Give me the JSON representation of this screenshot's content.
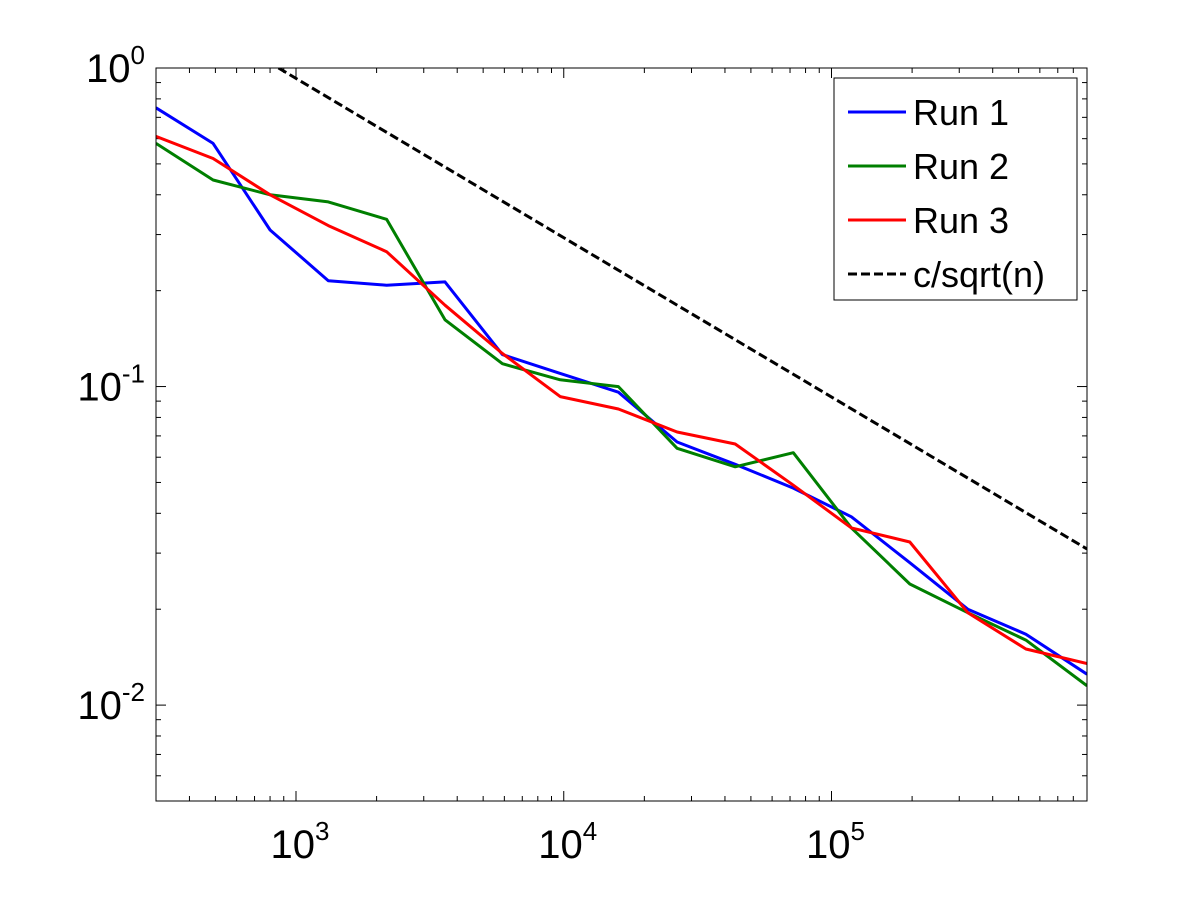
{
  "chart_data": {
    "type": "line",
    "title": "",
    "xlabel": "",
    "ylabel": "",
    "x_scale": "log",
    "y_scale": "log",
    "xlim": [
      300,
      900000
    ],
    "ylim": [
      0.005,
      1
    ],
    "grid": false,
    "legend_position": "top-right",
    "x_ticks": [
      {
        "value": 1000,
        "base": "10",
        "exp": "3"
      },
      {
        "value": 10000,
        "base": "10",
        "exp": "4"
      },
      {
        "value": 100000,
        "base": "10",
        "exp": "5"
      }
    ],
    "y_ticks": [
      {
        "value": 1,
        "base": "10",
        "exp": "0"
      },
      {
        "value": 0.1,
        "base": "10",
        "exp": "-1"
      },
      {
        "value": 0.01,
        "base": "10",
        "exp": "-2"
      }
    ],
    "series": [
      {
        "name": "Run 1",
        "color": "#0000ff",
        "dash": "solid",
        "x": [
          300,
          490,
          800,
          1320,
          2180,
          3600,
          5900,
          9700,
          16000,
          26500,
          43700,
          72000,
          118700,
          196000,
          323000,
          532000,
          900000
        ],
        "y": [
          0.75,
          0.58,
          0.31,
          0.215,
          0.208,
          0.213,
          0.126,
          0.11,
          0.096,
          0.067,
          0.057,
          0.048,
          0.039,
          0.028,
          0.02,
          0.0167,
          0.0125
        ]
      },
      {
        "name": "Run 2",
        "color": "#007f00",
        "dash": "solid",
        "x": [
          300,
          490,
          800,
          1320,
          2180,
          3600,
          5900,
          9700,
          16000,
          26500,
          43700,
          72000,
          118700,
          196000,
          323000,
          532000,
          900000
        ],
        "y": [
          0.58,
          0.445,
          0.4,
          0.38,
          0.335,
          0.162,
          0.118,
          0.105,
          0.1,
          0.064,
          0.056,
          0.062,
          0.036,
          0.024,
          0.0195,
          0.016,
          0.0115
        ]
      },
      {
        "name": "Run 3",
        "color": "#ff0000",
        "dash": "solid",
        "x": [
          300,
          490,
          800,
          1320,
          2180,
          3600,
          5900,
          9700,
          16000,
          26500,
          43700,
          72000,
          118700,
          196000,
          323000,
          532000,
          900000
        ],
        "y": [
          0.61,
          0.52,
          0.4,
          0.32,
          0.265,
          0.18,
          0.127,
          0.093,
          0.085,
          0.072,
          0.066,
          0.049,
          0.036,
          0.0325,
          0.0195,
          0.015,
          0.0135
        ]
      },
      {
        "name": "c/sqrt(n)",
        "color": "#000000",
        "dash": "dashed",
        "x": [
          860,
          900000
        ],
        "y": [
          1.0,
          0.0309
        ]
      }
    ]
  }
}
